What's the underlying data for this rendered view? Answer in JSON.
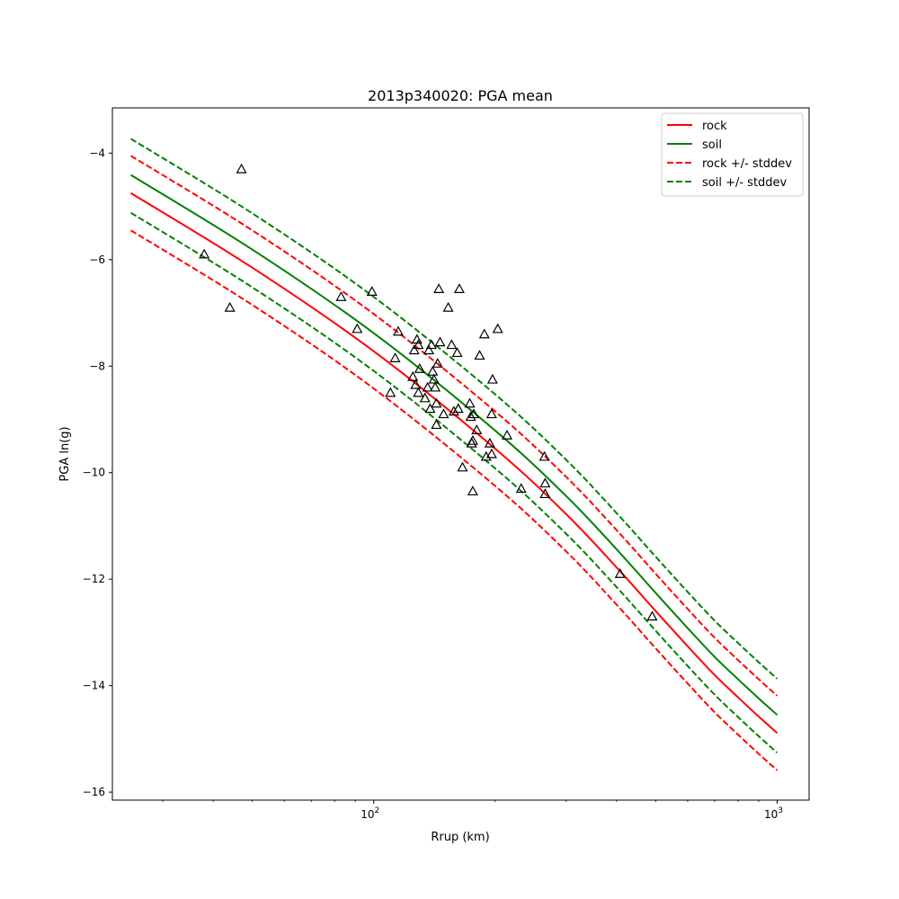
{
  "chart_data": {
    "type": "line",
    "title": "2013p340020: PGA mean",
    "xlabel": "Rrup (km)",
    "ylabel": "PGA ln(g)",
    "xscale": "log",
    "xlim": [
      22.5,
      1200
    ],
    "ylim": [
      -16.15,
      -3.15
    ],
    "x_ticks": [
      {
        "value": 100,
        "label": "10",
        "sup": "2"
      },
      {
        "value": 1000,
        "label": "10",
        "sup": "3"
      }
    ],
    "y_ticks": [
      -16,
      -14,
      -12,
      -10,
      -8,
      -6,
      -4
    ],
    "grid": false,
    "legend_position": "top-right",
    "curve_x": [
      25,
      50,
      100,
      200,
      300,
      400,
      500,
      600,
      700,
      800,
      900,
      1000
    ],
    "series": [
      {
        "name": "rock",
        "color": "#ff0000",
        "style": "solid",
        "y": [
          -4.75,
          -6.15,
          -7.72,
          -9.55,
          -10.78,
          -11.78,
          -12.6,
          -13.26,
          -13.8,
          -14.22,
          -14.58,
          -14.89
        ]
      },
      {
        "name": "soil",
        "color": "#008000",
        "style": "solid",
        "y": [
          -4.41,
          -5.81,
          -7.38,
          -9.21,
          -10.44,
          -11.44,
          -12.26,
          -12.92,
          -13.46,
          -13.88,
          -14.24,
          -14.55
        ]
      },
      {
        "name": "rock +/- stddev",
        "color": "#ff0000",
        "style": "dashed",
        "y": [
          -4.05,
          -5.45,
          -7.02,
          -8.85,
          -10.08,
          -11.08,
          -11.9,
          -12.56,
          -13.1,
          -13.52,
          -13.88,
          -14.19
        ]
      },
      {
        "name": "",
        "color": "#ff0000",
        "style": "dashed",
        "y": [
          -5.45,
          -6.85,
          -8.42,
          -10.25,
          -11.48,
          -12.48,
          -13.3,
          -13.96,
          -14.5,
          -14.92,
          -15.28,
          -15.59
        ]
      },
      {
        "name": "soil +/- stddev",
        "color": "#008000",
        "style": "dashed",
        "y": [
          -3.73,
          -5.13,
          -6.7,
          -8.53,
          -9.76,
          -10.76,
          -11.58,
          -12.24,
          -12.78,
          -13.2,
          -13.56,
          -13.87
        ]
      },
      {
        "name": "",
        "color": "#008000",
        "style": "dashed",
        "y": [
          -5.12,
          -6.52,
          -8.09,
          -9.92,
          -11.15,
          -12.15,
          -12.97,
          -13.63,
          -14.17,
          -14.59,
          -14.95,
          -15.26
        ]
      }
    ],
    "observations": {
      "marker": "triangle",
      "points": [
        [
          38,
          -5.9
        ],
        [
          47,
          -4.3
        ],
        [
          44,
          -6.9
        ],
        [
          83,
          -6.7
        ],
        [
          91,
          -7.3
        ],
        [
          99,
          -6.6
        ],
        [
          110,
          -8.5
        ],
        [
          113,
          -7.85
        ],
        [
          115,
          -7.35
        ],
        [
          125,
          -8.2
        ],
        [
          126,
          -7.7
        ],
        [
          127,
          -8.35
        ],
        [
          128,
          -7.5
        ],
        [
          129,
          -7.6
        ],
        [
          129,
          -8.5
        ],
        [
          130,
          -8.05
        ],
        [
          134,
          -8.6
        ],
        [
          136,
          -8.4
        ],
        [
          137,
          -7.7
        ],
        [
          138,
          -8.8
        ],
        [
          139,
          -7.6
        ],
        [
          140,
          -8.1
        ],
        [
          141,
          -8.25
        ],
        [
          142,
          -8.4
        ],
        [
          143,
          -8.7
        ],
        [
          143,
          -9.1
        ],
        [
          144,
          -7.95
        ],
        [
          145,
          -6.55
        ],
        [
          146,
          -7.55
        ],
        [
          149,
          -8.9
        ],
        [
          153,
          -6.9
        ],
        [
          156,
          -7.6
        ],
        [
          158,
          -8.85
        ],
        [
          161,
          -7.75
        ],
        [
          162,
          -8.8
        ],
        [
          163,
          -6.55
        ],
        [
          166,
          -9.9
        ],
        [
          173,
          -8.7
        ],
        [
          174,
          -8.95
        ],
        [
          175,
          -9.45
        ],
        [
          176,
          -10.35
        ],
        [
          176,
          -9.4
        ],
        [
          177,
          -8.9
        ],
        [
          180,
          -9.2
        ],
        [
          183,
          -7.8
        ],
        [
          188,
          -7.4
        ],
        [
          190,
          -9.7
        ],
        [
          194,
          -9.45
        ],
        [
          196,
          -9.65
        ],
        [
          196,
          -8.9
        ],
        [
          197,
          -8.25
        ],
        [
          203,
          -7.3
        ],
        [
          214,
          -9.3
        ],
        [
          232,
          -10.3
        ],
        [
          265,
          -9.7
        ],
        [
          266,
          -10.2
        ],
        [
          266,
          -10.4
        ],
        [
          408,
          -11.9
        ],
        [
          490,
          -12.7
        ]
      ]
    }
  }
}
